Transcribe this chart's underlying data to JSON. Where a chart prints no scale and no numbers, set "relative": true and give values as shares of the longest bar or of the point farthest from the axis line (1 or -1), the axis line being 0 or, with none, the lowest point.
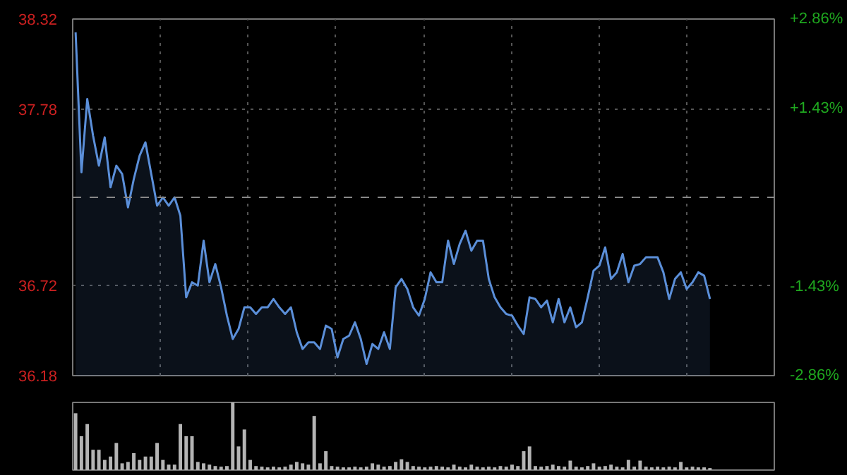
{
  "chart_data": [
    {
      "type": "area",
      "categories": [
        null,
        null,
        null,
        null,
        null,
        null,
        null,
        null,
        null,
        null,
        null,
        null,
        null,
        null,
        null,
        null,
        null,
        null,
        null,
        null,
        null,
        null,
        null,
        null,
        null,
        null,
        null,
        null,
        null,
        null,
        null,
        null,
        null,
        null,
        null,
        null,
        null,
        null,
        null,
        null,
        null,
        null,
        null,
        null,
        null,
        null,
        null,
        null,
        null,
        null,
        null,
        null,
        null,
        null,
        null,
        null,
        null,
        null,
        null,
        null,
        null,
        null,
        null,
        null,
        null,
        null,
        null,
        null,
        null,
        null,
        null,
        null,
        null,
        null,
        null,
        null,
        null,
        null,
        null,
        null,
        null,
        null,
        null,
        null,
        null,
        null,
        null,
        null,
        null,
        null,
        null,
        null,
        null,
        null,
        null,
        null,
        null,
        null,
        null,
        null,
        null,
        null,
        null,
        null,
        null,
        null,
        null,
        null,
        null,
        null
      ],
      "ylim": [
        36.18,
        38.32
      ],
      "yticks": [
        36.18,
        36.72,
        37.78,
        38.32
      ],
      "y2lim": [
        -2.86,
        2.86
      ],
      "y2ticks": [
        {
          "value": -2.86,
          "label": "-2.86%"
        },
        {
          "value": -1.43,
          "label": "-1.43%"
        },
        {
          "value": 1.43,
          "label": "+1.43%"
        },
        {
          "value": 2.86,
          "label": "+2.86%"
        }
      ],
      "grid": true,
      "ref_lines": [
        {
          "axis": "y",
          "value": 37.25,
          "color": "#888888",
          "line_style": "dashed"
        }
      ],
      "series": [
        {
          "color": "#5b8fd9",
          "values": [
            38.24,
            37.4,
            37.84,
            37.62,
            37.44,
            37.61,
            37.31,
            37.44,
            37.39,
            37.19,
            37.36,
            37.5,
            37.58,
            37.39,
            37.2,
            37.25,
            37.2,
            37.25,
            37.14,
            36.65,
            36.74,
            36.72,
            36.99,
            36.74,
            36.85,
            36.71,
            36.54,
            36.4,
            36.46,
            36.59,
            36.59,
            36.55,
            36.59,
            36.59,
            36.64,
            36.59,
            36.55,
            36.59,
            36.44,
            36.34,
            36.38,
            36.38,
            36.34,
            36.48,
            36.46,
            36.29,
            36.4,
            36.42,
            36.5,
            36.4,
            36.25,
            36.37,
            36.34,
            36.44,
            36.34,
            36.71,
            36.76,
            36.7,
            36.59,
            36.54,
            36.64,
            36.8,
            36.74,
            36.74,
            36.99,
            36.85,
            36.97,
            37.05,
            36.93,
            36.99,
            36.99,
            36.76,
            36.65,
            36.59,
            36.55,
            36.54,
            36.48,
            36.43,
            36.65,
            36.64,
            36.59,
            36.63,
            36.5,
            36.64,
            36.5,
            36.59,
            36.47,
            36.5,
            36.65,
            36.81,
            36.84,
            36.95,
            36.76,
            36.8,
            36.91,
            36.74,
            36.84,
            36.85,
            36.89,
            36.89,
            36.89,
            36.8,
            36.64,
            36.76,
            36.8,
            36.7,
            36.74,
            36.8,
            36.78,
            36.64
          ]
        }
      ]
    },
    {
      "type": "bar",
      "relative": true,
      "color": "#b4b4b4",
      "categories": [
        null,
        null,
        null,
        null,
        null,
        null,
        null,
        null,
        null,
        null,
        null,
        null,
        null,
        null,
        null,
        null,
        null,
        null,
        null,
        null,
        null,
        null,
        null,
        null,
        null,
        null,
        null,
        null,
        null,
        null,
        null,
        null,
        null,
        null,
        null,
        null,
        null,
        null,
        null,
        null,
        null,
        null,
        null,
        null,
        null,
        null,
        null,
        null,
        null,
        null,
        null,
        null,
        null,
        null,
        null,
        null,
        null,
        null,
        null,
        null,
        null,
        null,
        null,
        null,
        null,
        null,
        null,
        null,
        null,
        null,
        null,
        null,
        null,
        null,
        null,
        null,
        null,
        null,
        null,
        null,
        null,
        null,
        null,
        null,
        null,
        null,
        null,
        null,
        null,
        null,
        null,
        null,
        null,
        null,
        null,
        null,
        null,
        null,
        null,
        null,
        null,
        null,
        null,
        null,
        null,
        null,
        null,
        null,
        null,
        null
      ],
      "values": [
        0.84,
        0.5,
        0.68,
        0.3,
        0.3,
        0.15,
        0.2,
        0.4,
        0.1,
        0.12,
        0.25,
        0.15,
        0.2,
        0.2,
        0.4,
        0.15,
        0.08,
        0.08,
        0.68,
        0.5,
        0.5,
        0.12,
        0.1,
        0.08,
        0.06,
        0.05,
        0.06,
        1.0,
        0.35,
        0.6,
        0.15,
        0.06,
        0.05,
        0.04,
        0.05,
        0.04,
        0.05,
        0.08,
        0.12,
        0.1,
        0.08,
        0.8,
        0.1,
        0.28,
        0.06,
        0.05,
        0.04,
        0.04,
        0.05,
        0.04,
        0.05,
        0.1,
        0.08,
        0.05,
        0.06,
        0.12,
        0.16,
        0.12,
        0.06,
        0.05,
        0.04,
        0.05,
        0.06,
        0.05,
        0.04,
        0.08,
        0.05,
        0.04,
        0.08,
        0.05,
        0.04,
        0.05,
        0.04,
        0.06,
        0.05,
        0.08,
        0.06,
        0.28,
        0.35,
        0.06,
        0.05,
        0.06,
        0.08,
        0.06,
        0.05,
        0.14,
        0.05,
        0.04,
        0.06,
        0.1,
        0.05,
        0.06,
        0.08,
        0.05,
        0.04,
        0.15,
        0.05,
        0.14,
        0.05,
        0.04,
        0.05,
        0.04,
        0.05,
        0.04,
        0.12,
        0.04,
        0.05,
        0.04,
        0.04,
        0.03
      ]
    }
  ]
}
